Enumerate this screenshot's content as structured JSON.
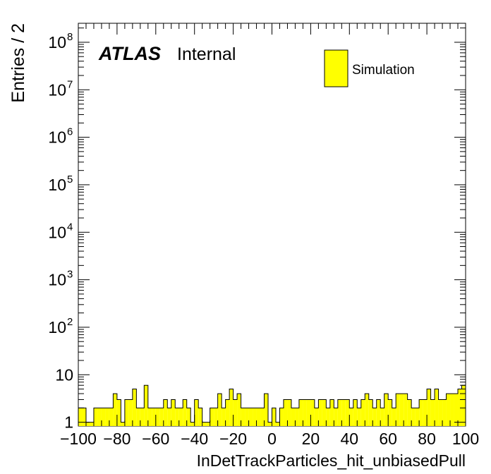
{
  "chart_data": {
    "type": "histogram",
    "ylog": true,
    "xlim": [
      -100,
      100
    ],
    "ylim_log10": [
      -0.08,
      8.4
    ],
    "bin_width": 2,
    "xlabel": "InDetTrackParticles_hit_unbiasedPull",
    "ylabel": "Entries / 2",
    "x_ticks": [
      "−100",
      "−80",
      "−60",
      "−40",
      "−20",
      "0",
      "20",
      "40",
      "60",
      "80",
      "100"
    ],
    "x_tick_values": [
      -100,
      -80,
      -60,
      -40,
      -20,
      0,
      20,
      40,
      60,
      80,
      100
    ],
    "y_ticks": [
      {
        "base": "1",
        "exp": ""
      },
      {
        "base": "10",
        "exp": ""
      },
      {
        "base": "10",
        "exp": "2"
      },
      {
        "base": "10",
        "exp": "3"
      },
      {
        "base": "10",
        "exp": "4"
      },
      {
        "base": "10",
        "exp": "5"
      },
      {
        "base": "10",
        "exp": "6"
      },
      {
        "base": "10",
        "exp": "7"
      },
      {
        "base": "10",
        "exp": "8"
      }
    ],
    "y_tick_values": [
      1,
      10,
      100,
      1000,
      10000,
      100000,
      1000000,
      10000000,
      100000000
    ],
    "legend": {
      "entries": [
        "Simulation"
      ],
      "position": "top-right",
      "color": "#ffff00"
    },
    "series": [
      {
        "name": "Simulation",
        "color": "#ffff00",
        "bin_edges_start": -100,
        "values": [
          2,
          2,
          1,
          1,
          2,
          2,
          2,
          2,
          2,
          4,
          3,
          1,
          3,
          3,
          5,
          2,
          2,
          6,
          2,
          2,
          2,
          2,
          3,
          2,
          3,
          2,
          2,
          3,
          2,
          1,
          3,
          2,
          1,
          1,
          2,
          2,
          4,
          2,
          3,
          5,
          3,
          4,
          2,
          2,
          2,
          2,
          2,
          2,
          4,
          1,
          2,
          1,
          2,
          3,
          3,
          2,
          2,
          3,
          3,
          3,
          3,
          2,
          3,
          3,
          2,
          3,
          2,
          3,
          3,
          3,
          2,
          3,
          2,
          3,
          4,
          3,
          2,
          3,
          2,
          4,
          3,
          2,
          4,
          4,
          4,
          3,
          2,
          2,
          3,
          3,
          5,
          3,
          5,
          3,
          3,
          4,
          4,
          4,
          5,
          6
        ]
      }
    ],
    "annotations": {
      "atlas": "ATLAS",
      "status": "Internal"
    }
  }
}
